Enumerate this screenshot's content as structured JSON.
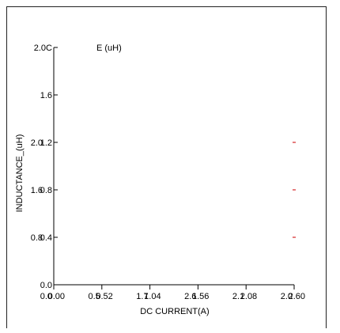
{
  "chart_data": {
    "type": "line",
    "xlabel": "DC CURRENT(A)",
    "ylabel": "INDUCTANCE_(uH)",
    "annotation": "E (uH)",
    "xlim": [
      0,
      2.6
    ],
    "ylim": [
      0,
      2.0
    ],
    "x_ticks_primary": [
      "0.00",
      "0.52",
      "1.04",
      "1.56",
      "2.08",
      "2.60"
    ],
    "x_ticks_secondary": [
      "0.0",
      "0.5",
      "1.7",
      "2.6",
      "2.1",
      "2.0"
    ],
    "y_ticks_primary": [
      "0.0",
      "0.4",
      "0.8",
      "1.2",
      "1.6",
      "2.0C"
    ],
    "y_ticks_secondary": [
      "0.8",
      "1.6",
      "2.0"
    ],
    "series": [
      {
        "color": "#d62728",
        "values": [
          {
            "x": 2.6,
            "y": 1.2
          },
          {
            "x": 2.6,
            "y": 0.8
          },
          {
            "x": 2.6,
            "y": 0.4
          }
        ]
      }
    ]
  }
}
